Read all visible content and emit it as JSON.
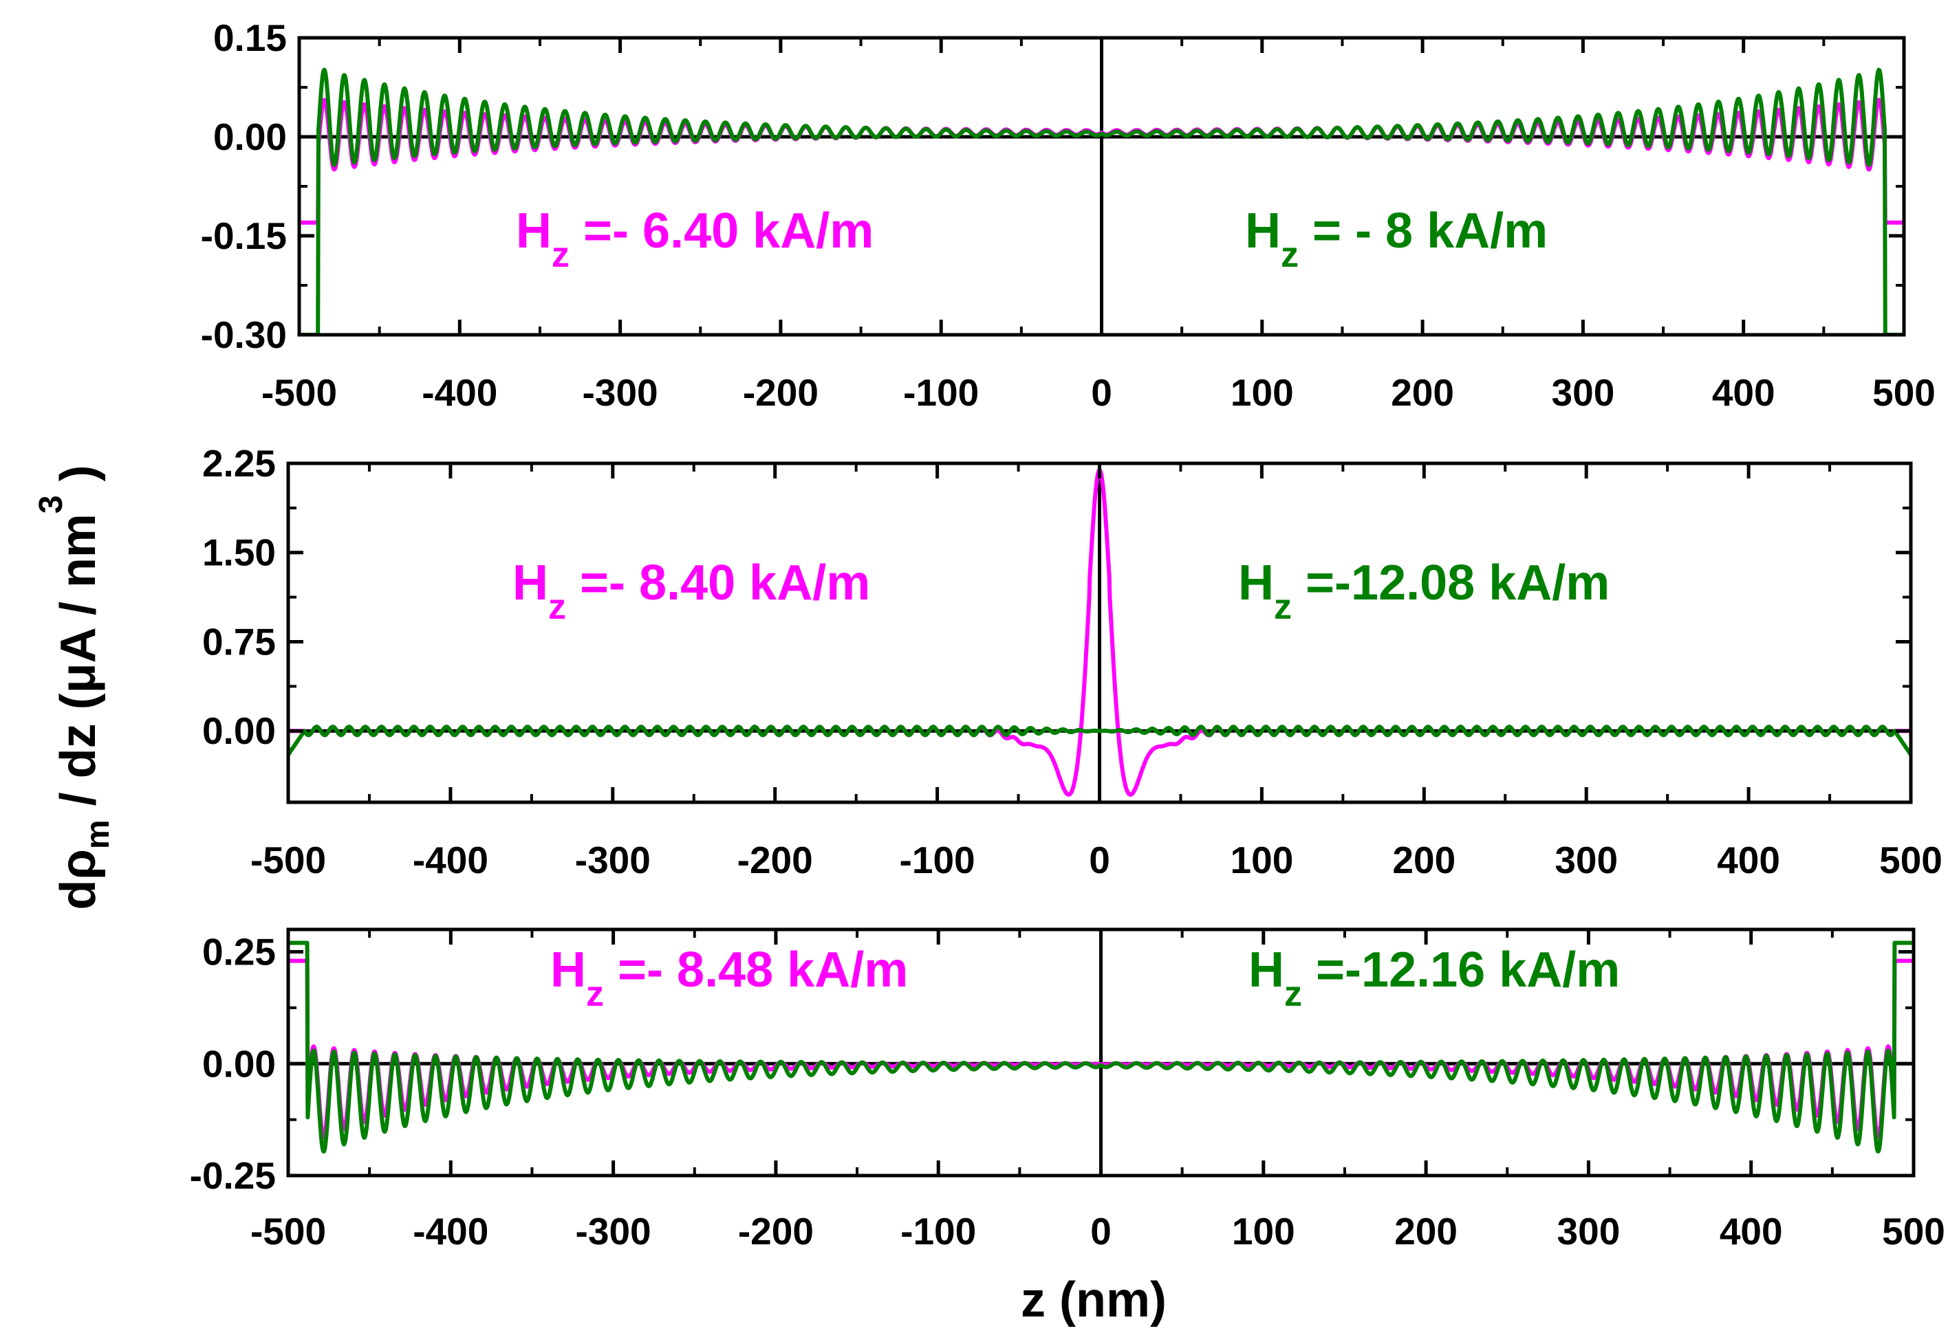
{
  "chart_data": {
    "figure_xlabel": "z (nm)",
    "figure_ylabel": "dρm / dz (μA / nm 3 )",
    "ylabel_parts": {
      "base": "dρ",
      "sub": "m",
      "rest": " / dz (μA / nm",
      "sup": "3",
      "end": " )"
    },
    "series_colors": {
      "magenta": "#ff00ff",
      "green": "#008000"
    },
    "panels": [
      {
        "type": "line",
        "xlim": [
          -500,
          500
        ],
        "ylim": [
          -0.3,
          0.15
        ],
        "xticks": [
          -500,
          -400,
          -300,
          -200,
          -100,
          0,
          100,
          200,
          300,
          400,
          500
        ],
        "xtick_labels": [
          "-500",
          "-400",
          "-300",
          "-200",
          "-100",
          "0",
          "100",
          "200",
          "300",
          "400",
          "500"
        ],
        "yticks": [
          -0.3,
          -0.15,
          0.0,
          0.15
        ],
        "ytick_labels": [
          "-0.30",
          "-0.15",
          "0.00",
          "0.15"
        ],
        "annotations": [
          {
            "color": "magenta",
            "prefix": "H",
            "sub": "z",
            "text": " =- 6.40 kA/m"
          },
          {
            "color": "green",
            "prefix": "H",
            "sub": "z",
            "text": " = - 8 kA/m"
          }
        ],
        "series": [
          {
            "name": "magenta",
            "color": "#ff00ff",
            "shape": "edge",
            "edge_level": -0.13,
            "amplitude": 0.055,
            "center": -0.005,
            "decay": 0.35,
            "offset": 0.007,
            "period": 12.5
          },
          {
            "name": "green",
            "color": "#008000",
            "shape": "edge",
            "edge_level": -0.3,
            "amplitude": 0.075,
            "center": 0.025,
            "decay": 0.3,
            "offset": 0.004,
            "period": 12.5
          }
        ]
      },
      {
        "type": "line",
        "xlim": [
          -500,
          500
        ],
        "ylim": [
          -0.6,
          2.25
        ],
        "xticks": [
          -500,
          -400,
          -300,
          -200,
          -100,
          0,
          100,
          200,
          300,
          400,
          500
        ],
        "xtick_labels": [
          "-500",
          "-400",
          "-300",
          "-200",
          "-100",
          "0",
          "100",
          "200",
          "300",
          "400",
          "500"
        ],
        "yticks": [
          0.0,
          0.75,
          1.5,
          2.25
        ],
        "ytick_labels": [
          "0.00",
          "0.75",
          "1.50",
          "2.25"
        ],
        "annotations": [
          {
            "color": "magenta",
            "prefix": "H",
            "sub": "z",
            "text": " =- 8.40 kA/m"
          },
          {
            "color": "green",
            "prefix": "H",
            "sub": "z",
            "text": " =-12.08 kA/m"
          }
        ],
        "series": [
          {
            "name": "magenta",
            "color": "#ff00ff",
            "shape": "peak",
            "peak": 2.2,
            "dip": -0.53,
            "ripple": 0.035,
            "period": 10
          },
          {
            "name": "green",
            "color": "#008000",
            "shape": "flat",
            "ripple": 0.035,
            "end_level": -0.2,
            "period": 10
          }
        ]
      },
      {
        "type": "line",
        "xlim": [
          -500,
          500
        ],
        "ylim": [
          -0.25,
          0.3
        ],
        "xticks": [
          -500,
          -400,
          -300,
          -200,
          -100,
          0,
          100,
          200,
          300,
          400,
          500
        ],
        "xtick_labels": [
          "-500",
          "-400",
          "-300",
          "-200",
          "-100",
          "0",
          "100",
          "200",
          "300",
          "400",
          "500"
        ],
        "yticks": [
          -0.25,
          0.0,
          0.25
        ],
        "ytick_labels": [
          "-0.25",
          "0.00",
          "0.25"
        ],
        "annotations": [
          {
            "color": "magenta",
            "prefix": "H",
            "sub": "z",
            "text": " =- 8.48 kA/m"
          },
          {
            "color": "green",
            "prefix": "H",
            "sub": "z",
            "text": " =-12.16 kA/m"
          }
        ],
        "series": [
          {
            "name": "magenta",
            "color": "#ff00ff",
            "shape": "edge",
            "edge_level": 0.23,
            "amplitude": 0.11,
            "center": -0.07,
            "decay": 0.22,
            "offset": 0.0,
            "period": 12.5
          },
          {
            "name": "green",
            "color": "#008000",
            "shape": "edge",
            "edge_level": 0.27,
            "amplitude": 0.12,
            "center": -0.09,
            "decay": 0.3,
            "offset": 0.0,
            "period": 12.5
          }
        ]
      }
    ]
  }
}
